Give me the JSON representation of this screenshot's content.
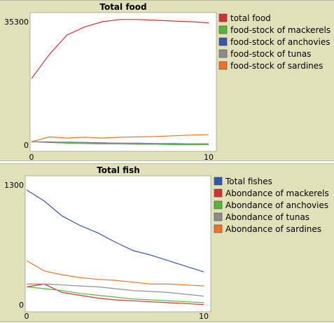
{
  "chart_data": [
    {
      "type": "line",
      "title": "Total food",
      "x_ticks": [
        "0",
        "10"
      ],
      "y_ticks": [
        "0",
        "35300"
      ],
      "xlim": [
        0,
        10
      ],
      "ylim": [
        0,
        35300
      ],
      "legend_position": "right",
      "x": [
        0,
        1,
        2,
        3,
        4,
        5,
        6,
        7,
        8,
        9,
        10
      ],
      "series": [
        {
          "name": "total food",
          "color": "#d73030",
          "values": [
            18000,
            24500,
            29800,
            32000,
            33400,
            34000,
            34000,
            33800,
            33600,
            33400,
            33100
          ]
        },
        {
          "name": "food-stock of mackerels",
          "color": "#57b537",
          "values": [
            900,
            700,
            500,
            400,
            300,
            300,
            200,
            200,
            100,
            100,
            100
          ]
        },
        {
          "name": "food-stock of anchovies",
          "color": "#3455b0",
          "values": [
            900,
            800,
            800,
            700,
            600,
            500,
            500,
            400,
            400,
            300,
            300
          ]
        },
        {
          "name": "food-stock of tunas",
          "color": "#8d8d8d",
          "values": [
            900,
            900,
            700,
            600,
            500,
            500,
            400,
            400,
            300,
            300,
            300
          ]
        },
        {
          "name": "food-stock of sardines",
          "color": "#f07428",
          "values": [
            900,
            2200,
            1900,
            2100,
            1900,
            2100,
            2200,
            2300,
            2500,
            2700,
            2800
          ]
        }
      ]
    },
    {
      "type": "line",
      "title": "Total fish",
      "x_ticks": [
        "0",
        "10"
      ],
      "y_ticks": [
        "0",
        "1300"
      ],
      "xlim": [
        0,
        10
      ],
      "ylim": [
        0,
        1300
      ],
      "legend_position": "right",
      "x": [
        0,
        1,
        2,
        3,
        4,
        5,
        6,
        7,
        8,
        9,
        10
      ],
      "series": [
        {
          "name": "Total fishes",
          "color": "#3455b0",
          "values": [
            1240,
            1120,
            960,
            860,
            780,
            680,
            590,
            540,
            480,
            420,
            360
          ]
        },
        {
          "name": "Abondance of mackerels",
          "color": "#d73030",
          "values": [
            200,
            230,
            140,
            110,
            80,
            60,
            50,
            40,
            30,
            20,
            10
          ]
        },
        {
          "name": "Abondance of anchovies",
          "color": "#57b537",
          "values": [
            200,
            180,
            160,
            130,
            110,
            90,
            70,
            60,
            50,
            40,
            30
          ]
        },
        {
          "name": "Abondance of tunas",
          "color": "#8d8d8d",
          "values": [
            230,
            230,
            220,
            210,
            200,
            180,
            160,
            150,
            140,
            120,
            100
          ]
        },
        {
          "name": "Abondance of sardines",
          "color": "#f07428",
          "values": [
            480,
            370,
            330,
            300,
            280,
            270,
            250,
            230,
            230,
            220,
            210
          ]
        }
      ]
    }
  ]
}
